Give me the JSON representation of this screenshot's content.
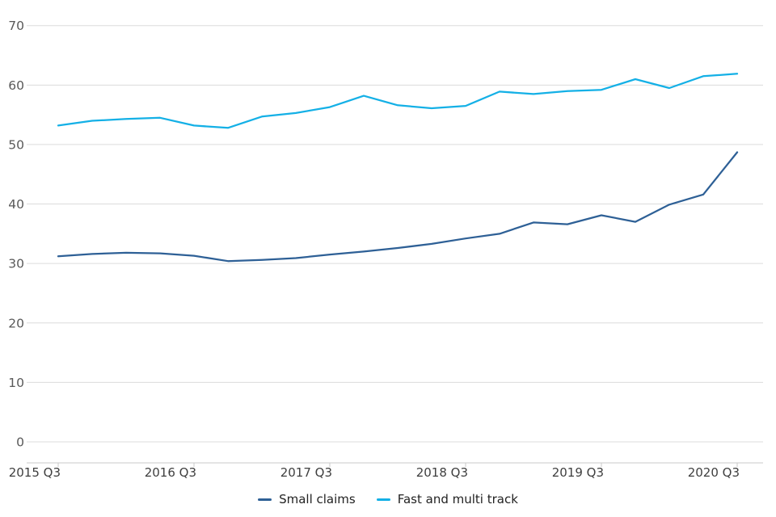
{
  "chart_data": {
    "type": "line",
    "title": "",
    "xlabel": "",
    "ylabel": "",
    "x": [
      "2015 Q3",
      "2015 Q4",
      "2016 Q1",
      "2016 Q2",
      "2016 Q3",
      "2016 Q4",
      "2017 Q1",
      "2017 Q2",
      "2017 Q3",
      "2017 Q4",
      "2018 Q1",
      "2018 Q2",
      "2018 Q3",
      "2018 Q4",
      "2019 Q1",
      "2019 Q2",
      "2019 Q3",
      "2019 Q4",
      "2020 Q1",
      "2020 Q2",
      "2020 Q3"
    ],
    "x_tick_labels": [
      "2015 Q3",
      "2016 Q3",
      "2017 Q3",
      "2018 Q3",
      "2019 Q3",
      "2020 Q3"
    ],
    "x_tick_indices": [
      0,
      4,
      8,
      12,
      16,
      20
    ],
    "y_ticks": [
      0,
      10,
      20,
      30,
      40,
      50,
      60,
      70
    ],
    "ylim": [
      0,
      70
    ],
    "grid": "horizontal",
    "legend_position": "bottom-center",
    "series": [
      {
        "name": "Small claims",
        "color": "#2e6096",
        "values": [
          31.2,
          31.6,
          31.8,
          31.7,
          31.3,
          30.4,
          30.6,
          30.9,
          31.5,
          32.0,
          32.6,
          33.3,
          34.2,
          35.0,
          36.9,
          36.6,
          38.1,
          37.0,
          39.9,
          41.6,
          48.7
        ]
      },
      {
        "name": "Fast and multi track",
        "color": "#14b0e6",
        "values": [
          53.2,
          54.0,
          54.3,
          54.5,
          53.2,
          52.8,
          54.7,
          55.3,
          56.3,
          58.2,
          56.6,
          56.1,
          56.5,
          58.9,
          58.5,
          59.0,
          59.2,
          61.0,
          59.5,
          61.5,
          61.9
        ]
      }
    ],
    "colors": {
      "background": "#ffffff",
      "gridline": "#dcdcdc",
      "axis": "#c9c9c9",
      "y_tick_text": "#595959",
      "x_tick_text": "#3f3f3f",
      "legend_text": "#222222"
    }
  }
}
